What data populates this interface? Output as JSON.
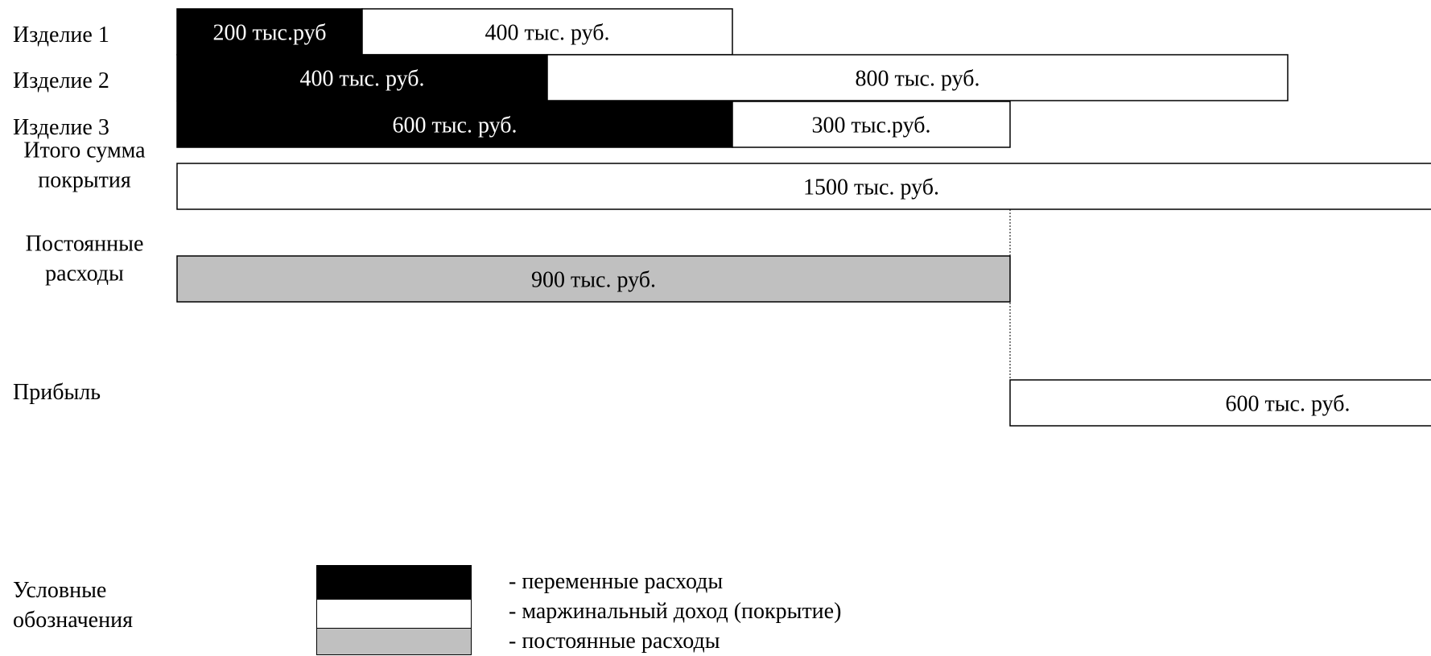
{
  "chart_data": {
    "type": "bar",
    "stacked": true,
    "unit": "тыс. руб.",
    "rows": [
      {
        "label": [
          "Изделие 1"
        ],
        "segments": [
          {
            "kind": "variable",
            "start": 0,
            "value": 200,
            "label": "200 тыс.руб"
          },
          {
            "kind": "margin",
            "start": 200,
            "value": 400,
            "label": "400 тыс. руб."
          }
        ]
      },
      {
        "label": [
          "Изделие 2"
        ],
        "segments": [
          {
            "kind": "variable",
            "start": 0,
            "value": 400,
            "label": "400 тыс. руб."
          },
          {
            "kind": "margin",
            "start": 400,
            "value": 800,
            "label": "800 тыс. руб."
          }
        ]
      },
      {
        "label": [
          "Изделие 3"
        ],
        "segments": [
          {
            "kind": "variable",
            "start": 0,
            "value": 600,
            "label": "600 тыс. руб."
          },
          {
            "kind": "margin",
            "start": 600,
            "value": 300,
            "label": "300 тыс.руб."
          }
        ]
      },
      {
        "label": [
          "Итого сумма",
          "покрытия"
        ],
        "segments": [
          {
            "kind": "margin",
            "start": 0,
            "value": 1500,
            "label": "1500 тыс. руб."
          }
        ]
      },
      {
        "label": [
          "Постоянные",
          "расходы"
        ],
        "segments": [
          {
            "kind": "fixed",
            "start": 0,
            "value": 900,
            "label": "900 тыс. руб."
          }
        ]
      },
      {
        "label": [
          "Прибыль"
        ],
        "segments": [
          {
            "kind": "margin",
            "start": 900,
            "value": 600,
            "label": "600 тыс. руб."
          }
        ]
      }
    ],
    "divider_at": 900,
    "colors": {
      "variable": "#000000",
      "margin": "#ffffff",
      "fixed": "#c0c0c0",
      "border": "#000000"
    }
  },
  "legend": {
    "title_lines": [
      "Условные",
      "обозначения"
    ],
    "items": [
      {
        "kind": "variable",
        "text": "- переменные расходы"
      },
      {
        "kind": "margin",
        "text": "- маржинальный доход (покрытие)"
      },
      {
        "kind": "fixed",
        "text": "- постоянные расходы"
      }
    ]
  }
}
